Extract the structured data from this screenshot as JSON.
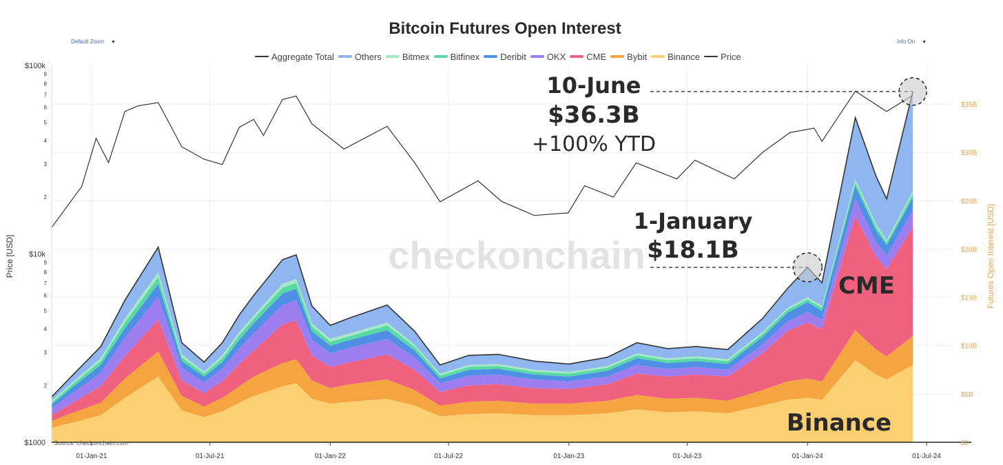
{
  "header": {
    "title": "Bitcoin Futures Open Interest",
    "zoom_label": "Default Zoom",
    "info_label": "Info On"
  },
  "colors": {
    "Aggregate Total": "#333333",
    "Others": "#8fb6ee",
    "Bitmex": "#a6e8c6",
    "Bitfinex": "#57d9a3",
    "Deribit": "#4f8fe6",
    "OKX": "#9d7ef0",
    "CME": "#f0607f",
    "Bybit": "#f4a540",
    "Binance": "#fbcf72",
    "Price": "#333333"
  },
  "chart_data": {
    "type": "area",
    "title": "Bitcoin Futures Open Interest",
    "y_left_label": "Price [USD]",
    "y_right_label": "Futures Open Interest [USD]",
    "y_left_scale": "log",
    "y_left_range": [
      1000,
      100000
    ],
    "y_left_major_ticks": [
      {
        "value": 1000,
        "label": "$1000"
      },
      {
        "value": 10000,
        "label": "$10k"
      },
      {
        "value": 100000,
        "label": "$100k"
      }
    ],
    "y_left_minor_ticks": [
      {
        "value": 2000,
        "label": "2"
      },
      {
        "value": 3000,
        "label": "3"
      },
      {
        "value": 4000,
        "label": "4"
      },
      {
        "value": 5000,
        "label": "5"
      },
      {
        "value": 6000,
        "label": "6"
      },
      {
        "value": 7000,
        "label": "7"
      },
      {
        "value": 8000,
        "label": "8"
      },
      {
        "value": 9000,
        "label": "9"
      },
      {
        "value": 20000,
        "label": "2"
      },
      {
        "value": 30000,
        "label": "3"
      },
      {
        "value": 40000,
        "label": "4"
      },
      {
        "value": 50000,
        "label": "5"
      },
      {
        "value": 60000,
        "label": "6"
      },
      {
        "value": 70000,
        "label": "7"
      },
      {
        "value": 80000,
        "label": "8"
      },
      {
        "value": 90000,
        "label": "9"
      }
    ],
    "y_right_range_billions": [
      0,
      39
    ],
    "y_right_ticks": [
      {
        "value": 0,
        "label": "$0"
      },
      {
        "value": 5,
        "label": "$5B"
      },
      {
        "value": 10,
        "label": "$10B"
      },
      {
        "value": 15,
        "label": "$15B"
      },
      {
        "value": 20,
        "label": "$20B"
      },
      {
        "value": 25,
        "label": "$25B"
      },
      {
        "value": 30,
        "label": "$30B"
      },
      {
        "value": 35,
        "label": "$35B"
      }
    ],
    "x_range": [
      "2020-11-01",
      "2024-08-10"
    ],
    "x_ticks": [
      {
        "date": "2021-01-01",
        "label": "01-Jan-21"
      },
      {
        "date": "2021-07-01",
        "label": "01-Jul-21"
      },
      {
        "date": "2022-01-01",
        "label": "01-Jan-22"
      },
      {
        "date": "2022-07-01",
        "label": "01-Jul-22"
      },
      {
        "date": "2023-01-01",
        "label": "01-Jan-23"
      },
      {
        "date": "2023-07-01",
        "label": "01-Jul-23"
      },
      {
        "date": "2024-01-01",
        "label": "01-Jan-24"
      },
      {
        "date": "2024-07-01",
        "label": "01-Jul-24"
      }
    ],
    "legend": [
      "Aggregate Total",
      "Others",
      "Bitmex",
      "Bitfinex",
      "Deribit",
      "OKX",
      "CME",
      "Bybit",
      "Binance",
      "Price"
    ],
    "stack_order": [
      "Binance",
      "Bybit",
      "CME",
      "OKX",
      "Deribit",
      "Bitfinex",
      "Bitmex",
      "Others"
    ],
    "dates": [
      "2020-11-01",
      "2020-12-01",
      "2021-01-15",
      "2021-02-21",
      "2021-04-13",
      "2021-05-19",
      "2021-06-22",
      "2021-07-20",
      "2021-08-15",
      "2021-09-06",
      "2021-10-20",
      "2021-11-10",
      "2021-12-04",
      "2022-01-01",
      "2022-02-01",
      "2022-03-29",
      "2022-05-10",
      "2022-06-18",
      "2022-08-01",
      "2022-09-15",
      "2022-11-09",
      "2023-01-01",
      "2023-03-01",
      "2023-04-15",
      "2023-06-01",
      "2023-07-15",
      "2023-09-01",
      "2023-10-24",
      "2023-12-01",
      "2024-01-01",
      "2024-01-23",
      "2024-03-14",
      "2024-04-15",
      "2024-05-01",
      "2024-06-10"
    ],
    "series": [
      {
        "name": "Binance",
        "values": [
          1.5,
          2.0,
          2.8,
          4.6,
          6.8,
          3.3,
          2.6,
          3.2,
          4.1,
          4.8,
          5.8,
          6.1,
          4.5,
          4.0,
          4.2,
          4.5,
          3.8,
          2.7,
          2.9,
          3.0,
          2.8,
          2.8,
          3.0,
          3.4,
          3.1,
          3.2,
          3.0,
          3.8,
          4.4,
          4.6,
          4.4,
          8.5,
          7.0,
          6.5,
          8.0
        ]
      },
      {
        "name": "Bybit",
        "values": [
          0.7,
          1.0,
          1.3,
          2.0,
          2.6,
          1.5,
          1.1,
          1.4,
          1.7,
          2.0,
          2.4,
          2.5,
          1.9,
          1.6,
          1.8,
          2.0,
          1.6,
          1.1,
          1.3,
          1.3,
          1.2,
          1.2,
          1.3,
          1.5,
          1.4,
          1.4,
          1.3,
          1.6,
          1.9,
          2.0,
          1.9,
          3.1,
          2.6,
          2.4,
          3.0
        ]
      },
      {
        "name": "CME",
        "values": [
          0.6,
          1.0,
          1.7,
          2.3,
          3.3,
          1.6,
          1.4,
          1.7,
          2.3,
          2.7,
          4.0,
          4.0,
          2.6,
          2.2,
          2.3,
          2.6,
          2.1,
          1.4,
          1.7,
          1.7,
          1.6,
          1.5,
          1.7,
          2.2,
          2.3,
          2.4,
          2.5,
          3.8,
          5.2,
          5.8,
          5.4,
          11.8,
          9.6,
          9.0,
          11.3
        ]
      },
      {
        "name": "OKX",
        "values": [
          0.7,
          1.0,
          1.4,
          1.9,
          2.4,
          1.3,
          1.1,
          1.3,
          1.6,
          1.8,
          2.0,
          2.1,
          1.6,
          1.4,
          1.5,
          1.6,
          1.3,
          0.9,
          1.0,
          1.0,
          0.9,
          0.8,
          0.8,
          0.9,
          0.8,
          0.8,
          0.7,
          0.9,
          1.0,
          1.1,
          1.0,
          1.8,
          1.5,
          1.4,
          1.7
        ]
      },
      {
        "name": "Deribit",
        "values": [
          0.4,
          0.6,
          0.8,
          1.0,
          1.3,
          0.7,
          0.6,
          0.7,
          0.9,
          1.0,
          1.2,
          1.2,
          0.9,
          0.8,
          0.8,
          0.9,
          0.7,
          0.5,
          0.6,
          0.6,
          0.5,
          0.5,
          0.6,
          0.7,
          0.6,
          0.6,
          0.6,
          0.8,
          0.9,
          1.0,
          0.9,
          1.3,
          1.2,
          1.1,
          1.3
        ]
      },
      {
        "name": "Bitfinex",
        "values": [
          0.2,
          0.3,
          0.4,
          0.6,
          0.7,
          0.4,
          0.3,
          0.4,
          0.5,
          0.5,
          0.6,
          0.6,
          0.5,
          0.4,
          0.4,
          0.5,
          0.4,
          0.3,
          0.3,
          0.3,
          0.3,
          0.3,
          0.3,
          0.3,
          0.3,
          0.3,
          0.3,
          0.3,
          0.3,
          0.3,
          0.3,
          0.4,
          0.4,
          0.3,
          0.4
        ]
      },
      {
        "name": "Bitmex",
        "values": [
          0.2,
          0.2,
          0.3,
          0.4,
          0.5,
          0.3,
          0.2,
          0.3,
          0.3,
          0.3,
          0.4,
          0.4,
          0.3,
          0.3,
          0.3,
          0.3,
          0.2,
          0.2,
          0.2,
          0.2,
          0.2,
          0.2,
          0.2,
          0.2,
          0.2,
          0.2,
          0.2,
          0.2,
          0.2,
          0.2,
          0.2,
          0.3,
          0.3,
          0.2,
          0.3
        ]
      },
      {
        "name": "Others",
        "values": [
          0.4,
          0.7,
          1.2,
          1.9,
          2.6,
          1.2,
          1.0,
          1.3,
          1.8,
          2.1,
          2.5,
          2.5,
          1.8,
          1.4,
          1.6,
          1.8,
          1.4,
          0.9,
          1.0,
          1.0,
          0.9,
          0.8,
          0.9,
          1.1,
          1.0,
          1.0,
          1.0,
          1.4,
          2.0,
          3.1,
          2.4,
          6.4,
          4.9,
          4.3,
          10.3
        ]
      }
    ],
    "aggregate_total": [
      4.7,
      6.8,
      9.9,
      14.7,
      20.2,
      10.3,
      8.3,
      10.3,
      13.2,
      15.2,
      18.9,
      19.4,
      14.1,
      12.1,
      12.9,
      14.2,
      11.5,
      8.0,
      9.0,
      9.1,
      8.4,
      8.1,
      8.8,
      10.3,
      9.7,
      9.9,
      9.6,
      12.8,
      15.9,
      18.1,
      16.5,
      33.6,
      27.5,
      25.2,
      36.3
    ],
    "price": {
      "name": "Price",
      "dates": [
        "2020-11-01",
        "2020-12-17",
        "2021-01-08",
        "2021-01-27",
        "2021-02-21",
        "2021-03-13",
        "2021-04-13",
        "2021-05-19",
        "2021-06-22",
        "2021-07-20",
        "2021-08-15",
        "2021-09-06",
        "2021-09-21",
        "2021-10-20",
        "2021-11-10",
        "2021-12-04",
        "2022-01-22",
        "2022-03-29",
        "2022-05-10",
        "2022-06-18",
        "2022-08-15",
        "2022-09-20",
        "2022-11-09",
        "2022-12-31",
        "2023-01-25",
        "2023-03-10",
        "2023-04-14",
        "2023-06-15",
        "2023-07-13",
        "2023-09-11",
        "2023-10-24",
        "2023-12-05",
        "2024-01-11",
        "2024-01-23",
        "2024-03-14",
        "2024-05-01",
        "2024-06-10"
      ],
      "values": [
        13800,
        22800,
        41000,
        30500,
        57000,
        61000,
        63500,
        37000,
        31800,
        29800,
        47000,
        51700,
        42500,
        66000,
        68800,
        49000,
        36000,
        47500,
        30500,
        18900,
        24400,
        19000,
        16000,
        16500,
        23000,
        20000,
        30400,
        25000,
        31400,
        25000,
        34500,
        44000,
        46500,
        39500,
        73000,
        57000,
        69500
      ]
    },
    "annotations": [
      {
        "text": "10-June",
        "date": "2024-06-10",
        "value": 36.3
      },
      {
        "text": "$36.3B",
        "date": "2024-06-10",
        "value": 36.3
      },
      {
        "text": "+100% YTD"
      },
      {
        "text": "1-January",
        "date": "2024-01-01",
        "value": 18.1
      },
      {
        "text": "$18.1B",
        "date": "2024-01-01",
        "value": 18.1
      },
      {
        "text": "CME"
      },
      {
        "text": "Binance"
      }
    ],
    "watermark": "checkonchain",
    "source": "Source: checkonchain.com"
  }
}
